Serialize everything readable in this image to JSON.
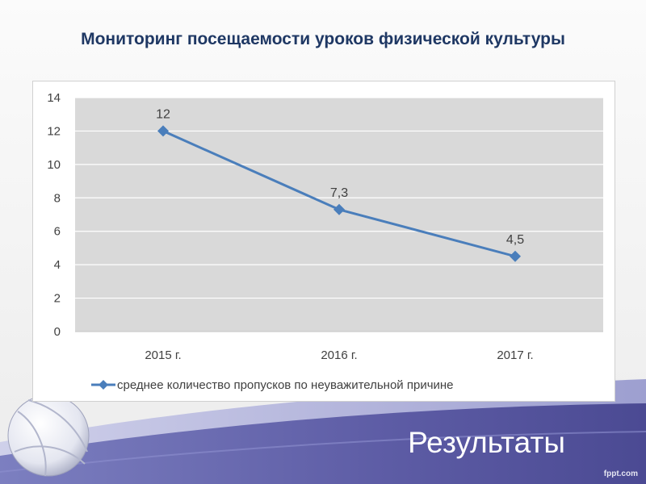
{
  "slide": {
    "title": "Мониторинг посещаемости уроков физической культуры",
    "footer_title": "Результаты",
    "watermark": "fppt.com"
  },
  "colors": {
    "title": "#1f3864",
    "series": "#4a7ebb",
    "plot_area": "#d9d9d9",
    "footer_band": "#5b5aa0"
  },
  "chart_data": {
    "type": "line",
    "title": "",
    "xlabel": "",
    "ylabel": "",
    "categories": [
      "2015 г.",
      "2016 г.",
      "2017 г."
    ],
    "series": [
      {
        "name": "среднее количество пропусков по неуважительной причине",
        "values": [
          12,
          7.3,
          4.5
        ],
        "data_labels": [
          "12",
          "7,3",
          "4,5"
        ],
        "color": "#4a7ebb",
        "marker": "diamond"
      }
    ],
    "ylim": [
      0,
      14
    ],
    "yticks": [
      0,
      2,
      4,
      6,
      8,
      10,
      12,
      14
    ],
    "grid": true,
    "legend": "bottom"
  }
}
